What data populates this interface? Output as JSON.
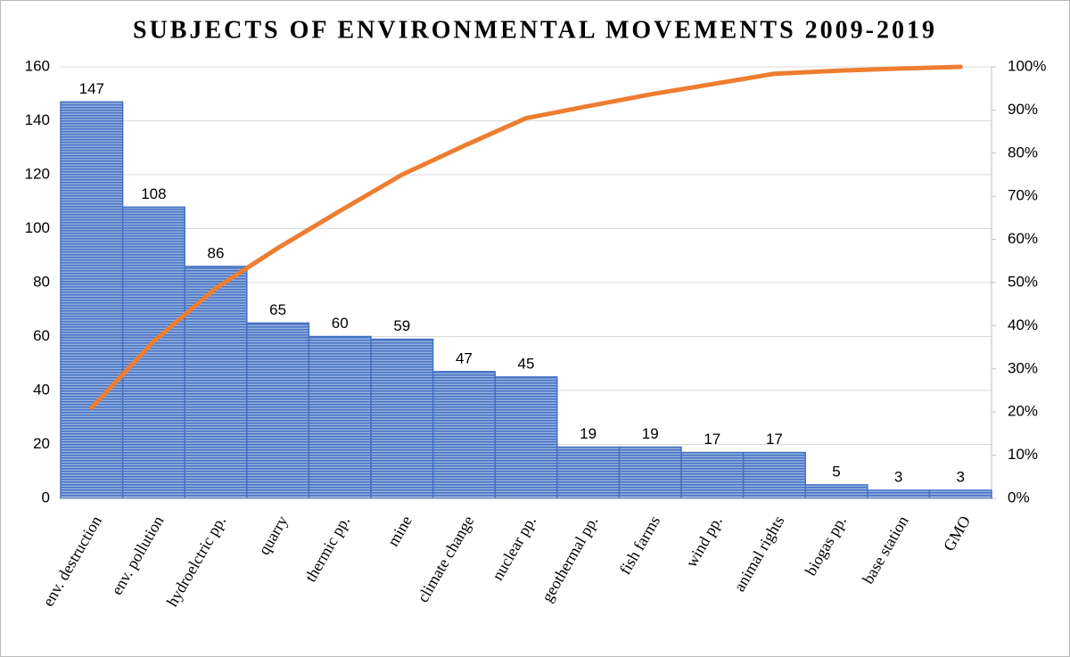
{
  "chart_data": {
    "type": "pareto",
    "title": "SUBJECTS OF ENVIRONMENTAL MOVEMENTS 2009-2019",
    "categories": [
      "env. destruction",
      "env. pollution",
      "hydroelctric pp.",
      "quarry",
      "thermic pp.",
      "mine",
      "climate change",
      "nuclear pp.",
      "geothermal pp.",
      "fish farms",
      "wind pp.",
      "animal rights",
      "biogas pp.",
      "base station",
      "GMO"
    ],
    "series": [
      {
        "type": "bar",
        "color": "#4472c4",
        "values": [
          147,
          108,
          86,
          65,
          60,
          59,
          47,
          45,
          19,
          19,
          17,
          17,
          5,
          3,
          3
        ]
      },
      {
        "type": "line",
        "axis": "y2",
        "color": "#ed7d31",
        "values": [
          21,
          36.4,
          48.7,
          58,
          66.6,
          75,
          81.7,
          88.1,
          90.9,
          93.6,
          96,
          98.4,
          99.1,
          99.6,
          100
        ]
      }
    ],
    "ylim": [
      0,
      160
    ],
    "yticks": [
      0,
      20,
      40,
      60,
      80,
      100,
      120,
      140,
      160
    ],
    "y2lim": [
      0,
      100
    ],
    "y2ticks": [
      {
        "value": 0,
        "label": "0%"
      },
      {
        "value": 10,
        "label": "10%"
      },
      {
        "value": 20,
        "label": "20%"
      },
      {
        "value": 30,
        "label": "30%"
      },
      {
        "value": 40,
        "label": "40%"
      },
      {
        "value": 50,
        "label": "50%"
      },
      {
        "value": 60,
        "label": "60%"
      },
      {
        "value": 70,
        "label": "70%"
      },
      {
        "value": 80,
        "label": "80%"
      },
      {
        "value": 90,
        "label": "90%"
      },
      {
        "value": 100,
        "label": "100%"
      }
    ],
    "grid": true
  }
}
